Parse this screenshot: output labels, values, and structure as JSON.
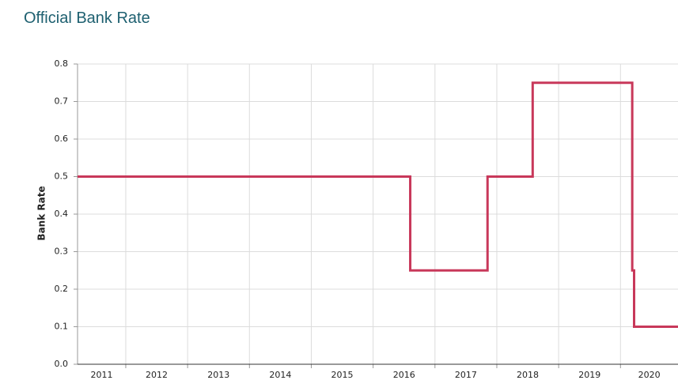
{
  "chart_data": {
    "type": "line",
    "title": "Official Bank Rate",
    "ylabel": "Bank Rate",
    "x": [
      2011.22,
      2016.6,
      2016.6,
      2017.85,
      2017.85,
      2018.58,
      2018.58,
      2020.19,
      2020.19,
      2020.22,
      2020.22,
      2020.93
    ],
    "series": [
      {
        "name": "Bank Rate",
        "color": "#c8385a",
        "values": [
          0.5,
          0.5,
          0.25,
          0.25,
          0.5,
          0.5,
          0.75,
          0.75,
          0.25,
          0.25,
          0.1,
          0.1
        ]
      }
    ],
    "xlim": [
      2011.22,
      2020.93
    ],
    "xticks": [
      {
        "value": 2011,
        "label": "2011"
      },
      {
        "value": 2012,
        "label": "2012"
      },
      {
        "value": 2013,
        "label": "2013"
      },
      {
        "value": 2014,
        "label": "2014"
      },
      {
        "value": 2015,
        "label": "2015"
      },
      {
        "value": 2016,
        "label": "2016"
      },
      {
        "value": 2017,
        "label": "2017"
      },
      {
        "value": 2018,
        "label": "2018"
      },
      {
        "value": 2019,
        "label": "2019"
      },
      {
        "value": 2020,
        "label": "2020"
      }
    ],
    "ylim": [
      0,
      0.8
    ],
    "yticks": [
      {
        "value": 0,
        "label": "0.0"
      },
      0.1,
      0.2,
      0.3,
      0.4,
      0.5,
      0.6,
      0.7,
      0.8
    ],
    "grid": true
  }
}
